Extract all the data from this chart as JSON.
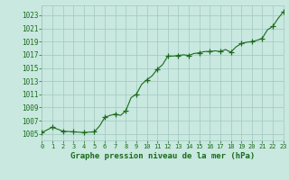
{
  "x": [
    0,
    1,
    2,
    3,
    4,
    5,
    5.5,
    6,
    6.5,
    7,
    7.5,
    8,
    8.5,
    9,
    9.5,
    10,
    10.5,
    11,
    11.5,
    12,
    12.5,
    13,
    13.5,
    14,
    14.5,
    15,
    15.5,
    16,
    16.5,
    17,
    17.5,
    18,
    18.5,
    19,
    19.5,
    20,
    20.5,
    21,
    21.5,
    22,
    22.5,
    23
  ],
  "y": [
    1005.2,
    1006.0,
    1005.4,
    1005.3,
    1005.2,
    1005.3,
    1006.2,
    1007.5,
    1007.8,
    1008.0,
    1007.8,
    1008.5,
    1010.5,
    1011.0,
    1012.5,
    1013.2,
    1013.8,
    1014.8,
    1015.5,
    1016.8,
    1016.8,
    1016.9,
    1017.0,
    1016.9,
    1017.2,
    1017.3,
    1017.5,
    1017.5,
    1017.6,
    1017.5,
    1017.8,
    1017.4,
    1018.2,
    1018.7,
    1018.9,
    1019.0,
    1019.2,
    1019.5,
    1020.8,
    1021.3,
    1022.5,
    1023.5
  ],
  "x_markers": [
    0,
    1,
    2,
    3,
    4,
    5,
    6,
    7,
    8,
    9,
    10,
    11,
    12,
    13,
    14,
    15,
    16,
    17,
    18,
    19,
    20,
    21,
    22,
    23
  ],
  "y_markers": [
    1005.2,
    1006.0,
    1005.4,
    1005.3,
    1005.2,
    1005.3,
    1007.5,
    1008.0,
    1008.5,
    1011.0,
    1013.2,
    1014.8,
    1016.8,
    1016.9,
    1016.9,
    1017.3,
    1017.5,
    1017.5,
    1017.4,
    1018.7,
    1019.0,
    1019.5,
    1021.3,
    1023.5
  ],
  "line_color": "#1a6b1a",
  "marker": "+",
  "bg_color": "#c8e8e0",
  "grid_color": "#a0c8c0",
  "xlabel": "Graphe pression niveau de la mer (hPa)",
  "xlabel_color": "#1a6b1a",
  "tick_color": "#1a6b1a",
  "ylim": [
    1004,
    1024.5
  ],
  "yticks": [
    1005,
    1007,
    1009,
    1011,
    1013,
    1015,
    1017,
    1019,
    1021,
    1023
  ],
  "xticks": [
    0,
    1,
    2,
    3,
    4,
    5,
    6,
    7,
    8,
    9,
    10,
    11,
    12,
    13,
    14,
    15,
    16,
    17,
    18,
    19,
    20,
    21,
    22,
    23
  ],
  "xlim": [
    0,
    23
  ]
}
